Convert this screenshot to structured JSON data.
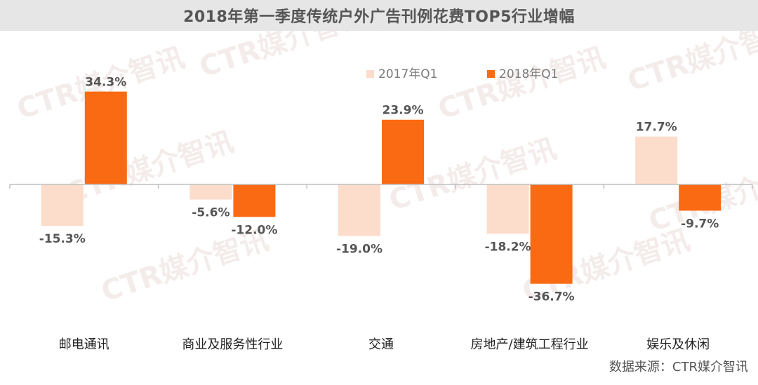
{
  "colors": {
    "q1_2017": "#fcdccb",
    "q1_2018": "#fa6a12",
    "axis": "#bfbfbf",
    "title_bg": "#e6e6e6"
  },
  "watermark": "CTR媒介智讯",
  "source": "数据来源：CTR媒介智讯",
  "chart_data": {
    "type": "bar",
    "title": "2018年第一季度传统户外广告刊例花费TOP5行业增幅",
    "xlabel": "",
    "ylabel": "",
    "ylim": [
      -40,
      40
    ],
    "grid": false,
    "legend_placement": "top-right",
    "categories": [
      "邮电通讯",
      "商业及服务性行业",
      "交通",
      "房地产/建筑工程行业",
      "娱乐及休闲"
    ],
    "series": [
      {
        "name": "2017年Q1",
        "values": [
          -15.3,
          -5.6,
          -19.0,
          -18.2,
          17.7
        ],
        "labels": [
          "-15.3%",
          "-5.6%",
          "-19.0%",
          "-18.2%",
          "17.7%"
        ]
      },
      {
        "name": "2018年Q1",
        "values": [
          34.3,
          -12.0,
          23.9,
          -36.7,
          -9.7
        ],
        "labels": [
          "34.3%",
          "-12.0%",
          "23.9%",
          "-36.7%",
          "-9.7%"
        ]
      }
    ]
  }
}
